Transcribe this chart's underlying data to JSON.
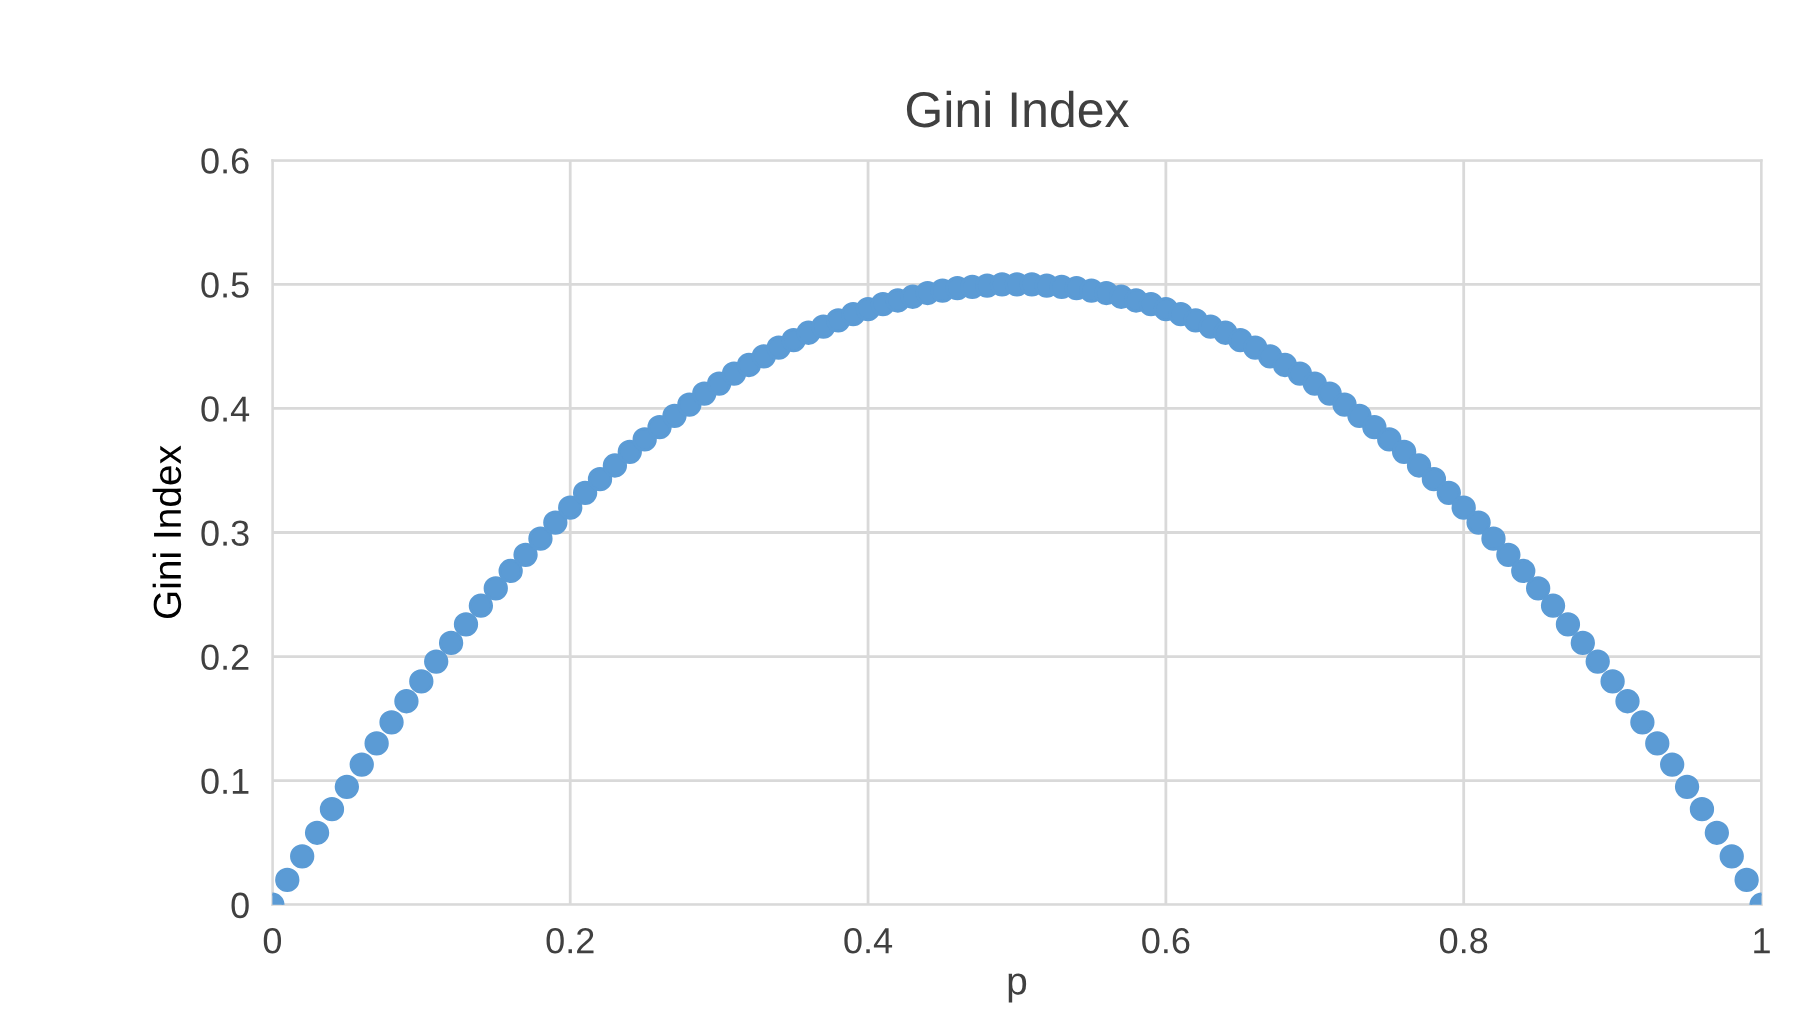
{
  "chart_data": {
    "type": "scatter",
    "title": "Gini Index",
    "xlabel": "p",
    "ylabel": "Gini Index",
    "x": [
      0,
      0.01,
      0.02,
      0.03,
      0.04,
      0.05,
      0.06,
      0.07,
      0.08,
      0.09,
      0.1,
      0.11,
      0.12,
      0.13,
      0.14,
      0.15,
      0.16,
      0.17,
      0.18,
      0.19,
      0.2,
      0.21,
      0.22,
      0.23,
      0.24,
      0.25,
      0.26,
      0.27,
      0.28,
      0.29,
      0.3,
      0.31,
      0.32,
      0.33,
      0.34,
      0.35,
      0.36,
      0.37,
      0.38,
      0.39,
      0.4,
      0.41,
      0.42,
      0.43,
      0.44,
      0.45,
      0.46,
      0.47,
      0.48,
      0.49,
      0.5,
      0.51,
      0.52,
      0.53,
      0.54,
      0.55,
      0.56,
      0.57,
      0.58,
      0.59,
      0.6,
      0.61,
      0.62,
      0.63,
      0.64,
      0.65,
      0.66,
      0.67,
      0.68,
      0.69,
      0.7,
      0.71,
      0.72,
      0.73,
      0.74,
      0.75,
      0.76,
      0.77,
      0.78,
      0.79,
      0.8,
      0.81,
      0.82,
      0.83,
      0.84,
      0.85,
      0.86,
      0.87,
      0.88,
      0.89,
      0.9,
      0.91,
      0.92,
      0.93,
      0.94,
      0.95,
      0.96,
      0.97,
      0.98,
      0.99,
      1
    ],
    "series": [
      {
        "color": "#5b9bd5",
        "values": [
          0,
          0.02,
          0.039,
          0.058,
          0.077,
          0.095,
          0.113,
          0.13,
          0.147,
          0.164,
          0.18,
          0.196,
          0.211,
          0.226,
          0.241,
          0.255,
          0.269,
          0.282,
          0.295,
          0.308,
          0.32,
          0.332,
          0.343,
          0.354,
          0.365,
          0.375,
          0.385,
          0.394,
          0.403,
          0.412,
          0.42,
          0.428,
          0.435,
          0.442,
          0.449,
          0.455,
          0.461,
          0.466,
          0.471,
          0.476,
          0.48,
          0.484,
          0.487,
          0.49,
          0.493,
          0.495,
          0.497,
          0.498,
          0.499,
          0.5,
          0.5,
          0.5,
          0.499,
          0.498,
          0.497,
          0.495,
          0.493,
          0.49,
          0.487,
          0.484,
          0.48,
          0.476,
          0.471,
          0.466,
          0.461,
          0.455,
          0.449,
          0.442,
          0.435,
          0.428,
          0.42,
          0.412,
          0.403,
          0.394,
          0.385,
          0.375,
          0.365,
          0.354,
          0.343,
          0.332,
          0.32,
          0.308,
          0.295,
          0.282,
          0.269,
          0.255,
          0.241,
          0.226,
          0.211,
          0.196,
          0.18,
          0.164,
          0.147,
          0.13,
          0.113,
          0.095,
          0.077,
          0.058,
          0.039,
          0.02,
          0
        ]
      }
    ],
    "xlim": [
      0,
      1
    ],
    "xticks": [
      0,
      0.2,
      0.4,
      0.6,
      0.8,
      1
    ],
    "ylim": [
      0,
      0.6
    ],
    "yticks": [
      0,
      0.1,
      0.2,
      0.3,
      0.4,
      0.5,
      0.6
    ],
    "grid": true,
    "marker": "circle"
  }
}
